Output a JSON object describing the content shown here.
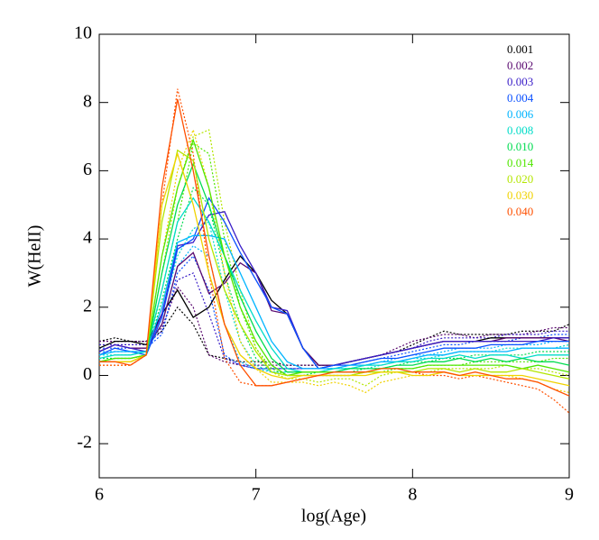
{
  "chart_data": {
    "type": "line",
    "xlabel": "log(Age)",
    "ylabel": "W(HeII)",
    "xlim": [
      6,
      9
    ],
    "ylim": [
      -3,
      10
    ],
    "xticks": [
      6,
      7,
      8,
      9
    ],
    "yticks": [
      -2,
      0,
      2,
      4,
      6,
      8,
      10
    ],
    "legend": "upper right",
    "x": [
      6.0,
      6.1,
      6.2,
      6.3,
      6.4,
      6.5,
      6.6,
      6.7,
      6.8,
      6.9,
      7.0,
      7.1,
      7.2,
      7.3,
      7.4,
      7.5,
      7.6,
      7.7,
      7.8,
      7.9,
      8.0,
      8.1,
      8.2,
      8.3,
      8.4,
      8.5,
      8.6,
      8.7,
      8.8,
      8.9,
      9.0
    ],
    "series": [
      {
        "name": "0.001",
        "color": "#000000",
        "values": [
          0.8,
          1.0,
          1.0,
          0.9,
          1.8,
          2.5,
          1.7,
          2.0,
          2.8,
          3.5,
          3.0,
          2.2,
          1.8,
          0.8,
          0.3,
          0.3,
          0.4,
          0.5,
          0.6,
          0.7,
          0.8,
          0.9,
          1.0,
          1.0,
          1.0,
          1.1,
          1.1,
          1.1,
          1.1,
          1.1,
          1.1
        ]
      },
      {
        "name": "0.002",
        "color": "#5a0a70",
        "values": [
          0.7,
          0.9,
          0.8,
          0.8,
          1.5,
          3.2,
          3.6,
          2.4,
          2.7,
          3.3,
          3.0,
          1.9,
          1.8,
          0.8,
          0.3,
          0.3,
          0.4,
          0.5,
          0.6,
          0.7,
          0.8,
          0.9,
          1.0,
          1.0,
          1.0,
          1.0,
          1.1,
          1.1,
          1.1,
          1.1,
          1.0
        ]
      },
      {
        "name": "0.003",
        "color": "#3a1ec8",
        "values": [
          0.7,
          0.9,
          0.8,
          0.7,
          1.8,
          3.8,
          3.9,
          4.7,
          4.8,
          3.8,
          3.0,
          2.0,
          1.9,
          0.8,
          0.2,
          0.3,
          0.4,
          0.5,
          0.6,
          0.7,
          0.8,
          0.9,
          1.0,
          1.0,
          1.0,
          1.0,
          1.0,
          1.0,
          1.0,
          1.1,
          1.1
        ]
      },
      {
        "name": "0.004",
        "color": "#0a50ff",
        "values": [
          0.6,
          0.8,
          0.7,
          0.6,
          1.7,
          3.7,
          4.0,
          5.2,
          4.5,
          3.6,
          2.8,
          2.0,
          1.8,
          0.8,
          0.2,
          0.3,
          0.3,
          0.4,
          0.5,
          0.5,
          0.6,
          0.7,
          0.8,
          0.8,
          0.8,
          0.9,
          0.9,
          0.9,
          1.0,
          1.0,
          1.0
        ]
      },
      {
        "name": "0.006",
        "color": "#00b4ff",
        "values": [
          0.6,
          0.7,
          0.7,
          0.7,
          2.0,
          3.9,
          4.1,
          4.1,
          4.0,
          3.0,
          2.0,
          1.0,
          0.4,
          0.2,
          0.2,
          0.2,
          0.3,
          0.3,
          0.4,
          0.4,
          0.5,
          0.6,
          0.6,
          0.7,
          0.7,
          0.7,
          0.7,
          0.8,
          0.8,
          0.8,
          0.8
        ]
      },
      {
        "name": "0.008",
        "color": "#00dcc8",
        "values": [
          0.5,
          0.6,
          0.6,
          0.7,
          2.5,
          4.5,
          5.2,
          4.5,
          3.5,
          2.5,
          1.6,
          0.8,
          0.2,
          0.1,
          0.1,
          0.2,
          0.2,
          0.3,
          0.3,
          0.4,
          0.4,
          0.5,
          0.5,
          0.6,
          0.5,
          0.6,
          0.6,
          0.5,
          0.6,
          0.6,
          0.6
        ]
      },
      {
        "name": "0.010",
        "color": "#00dc50",
        "values": [
          0.4,
          0.5,
          0.5,
          0.6,
          3.0,
          5.0,
          6.2,
          5.0,
          3.5,
          2.3,
          1.3,
          0.5,
          0.1,
          0.1,
          0.1,
          0.1,
          0.2,
          0.2,
          0.2,
          0.3,
          0.3,
          0.4,
          0.4,
          0.5,
          0.4,
          0.5,
          0.4,
          0.5,
          0.4,
          0.4,
          0.3
        ]
      },
      {
        "name": "0.014",
        "color": "#50e600",
        "values": [
          0.4,
          0.5,
          0.5,
          0.6,
          3.5,
          5.5,
          6.9,
          5.5,
          3.5,
          2.0,
          1.0,
          0.3,
          0.0,
          0.1,
          0.1,
          0.1,
          0.1,
          0.1,
          0.2,
          0.2,
          0.2,
          0.3,
          0.3,
          0.3,
          0.3,
          0.3,
          0.3,
          0.2,
          0.3,
          0.2,
          0.1
        ]
      },
      {
        "name": "0.020",
        "color": "#b4e600",
        "values": [
          0.4,
          0.4,
          0.4,
          0.6,
          4.5,
          6.6,
          6.3,
          4.0,
          2.5,
          1.5,
          0.7,
          0.1,
          0.0,
          0.0,
          0.0,
          0.0,
          0.0,
          0.1,
          0.1,
          0.1,
          0.1,
          0.2,
          0.2,
          0.1,
          0.2,
          0.1,
          0.1,
          0.2,
          0.1,
          0.0,
          -0.1
        ]
      },
      {
        "name": "0.030",
        "color": "#f0d200",
        "values": [
          0.4,
          0.4,
          0.4,
          0.6,
          5.0,
          6.5,
          5.0,
          3.0,
          1.5,
          0.6,
          0.2,
          0.0,
          -0.1,
          0.0,
          0.0,
          0.0,
          0.0,
          0.0,
          0.1,
          0.1,
          0.0,
          0.0,
          0.1,
          0.0,
          0.0,
          0.0,
          0.0,
          0.0,
          -0.1,
          -0.2,
          -0.3
        ]
      },
      {
        "name": "0.040",
        "color": "#ff5000",
        "values": [
          0.4,
          0.4,
          0.3,
          0.6,
          5.5,
          8.1,
          6.0,
          3.5,
          1.5,
          0.3,
          -0.3,
          -0.3,
          -0.2,
          -0.1,
          0.0,
          0.1,
          0.1,
          0.1,
          0.2,
          0.2,
          0.1,
          0.1,
          0.1,
          0.0,
          0.1,
          0.0,
          -0.1,
          -0.1,
          -0.2,
          -0.4,
          -0.6
        ]
      }
    ],
    "dotted_series": [
      {
        "color": "#000000",
        "values": [
          1.0,
          1.1,
          1.0,
          1.0,
          1.3,
          2.0,
          1.5,
          0.6,
          0.5,
          0.4,
          0.4,
          0.4,
          0.3,
          0.3,
          0.3,
          0.3,
          0.4,
          0.5,
          0.6,
          0.7,
          0.9,
          1.1,
          1.3,
          1.2,
          1.2,
          1.2,
          1.2,
          1.3,
          1.3,
          1.3,
          1.5
        ]
      },
      {
        "color": "#5a0a70",
        "values": [
          1.0,
          1.0,
          1.0,
          1.0,
          1.4,
          2.6,
          2.0,
          0.6,
          0.4,
          0.3,
          0.3,
          0.3,
          0.3,
          0.3,
          0.3,
          0.3,
          0.4,
          0.5,
          0.6,
          0.8,
          1.0,
          1.1,
          1.2,
          1.2,
          1.1,
          1.2,
          1.2,
          1.2,
          1.3,
          1.4,
          1.4
        ]
      },
      {
        "color": "#3a1ec8",
        "values": [
          0.9,
          0.9,
          0.9,
          0.9,
          1.3,
          2.8,
          3.0,
          1.8,
          0.5,
          0.3,
          0.2,
          0.2,
          0.2,
          0.2,
          0.2,
          0.3,
          0.4,
          0.5,
          0.6,
          0.7,
          0.8,
          1.0,
          1.1,
          1.1,
          1.1,
          1.1,
          1.2,
          1.2,
          1.2,
          1.3,
          1.3
        ]
      },
      {
        "color": "#0a50ff",
        "values": [
          0.8,
          0.8,
          0.8,
          0.8,
          1.2,
          3.0,
          3.5,
          2.5,
          0.6,
          0.3,
          0.2,
          0.2,
          0.2,
          0.2,
          0.2,
          0.2,
          0.3,
          0.4,
          0.5,
          0.6,
          0.7,
          0.8,
          0.9,
          0.9,
          1.0,
          1.0,
          1.0,
          1.1,
          1.1,
          1.2,
          1.2
        ]
      },
      {
        "color": "#00b4ff",
        "values": [
          0.7,
          0.7,
          0.7,
          0.7,
          1.5,
          3.2,
          3.8,
          3.5,
          1.5,
          0.4,
          0.2,
          0.1,
          0.1,
          0.1,
          0.1,
          0.2,
          0.2,
          0.3,
          0.4,
          0.5,
          0.6,
          0.6,
          0.7,
          0.8,
          0.8,
          0.8,
          0.9,
          0.9,
          0.9,
          1.0,
          1.0
        ]
      },
      {
        "color": "#00dcc8",
        "values": [
          0.6,
          0.6,
          0.6,
          0.7,
          1.8,
          3.5,
          4.3,
          4.5,
          2.5,
          1.0,
          0.3,
          0.1,
          0.1,
          0.1,
          0.1,
          0.1,
          0.2,
          0.2,
          0.3,
          0.4,
          0.5,
          0.5,
          0.6,
          0.7,
          0.7,
          0.7,
          0.8,
          0.8,
          0.8,
          0.8,
          0.9
        ]
      },
      {
        "color": "#00dc50",
        "values": [
          0.5,
          0.5,
          0.5,
          0.6,
          2.2,
          4.0,
          5.5,
          5.0,
          3.0,
          1.5,
          0.5,
          0.1,
          0.0,
          0.0,
          0.1,
          0.1,
          0.1,
          0.2,
          0.2,
          0.3,
          0.4,
          0.4,
          0.5,
          0.5,
          0.6,
          0.6,
          0.6,
          0.6,
          0.7,
          0.7,
          0.7
        ]
      },
      {
        "color": "#50e600",
        "values": [
          0.4,
          0.4,
          0.4,
          0.6,
          2.5,
          4.5,
          6.8,
          6.5,
          4.0,
          2.0,
          0.8,
          0.2,
          0.0,
          0.0,
          0.0,
          0.0,
          0.0,
          0.1,
          0.1,
          0.2,
          0.2,
          0.3,
          0.3,
          0.3,
          0.4,
          0.4,
          0.4,
          0.4,
          0.4,
          0.5,
          0.5
        ]
      },
      {
        "color": "#b4e600",
        "values": [
          0.4,
          0.4,
          0.4,
          0.6,
          3.0,
          5.5,
          7.0,
          7.2,
          4.5,
          2.5,
          0.8,
          0.1,
          -0.1,
          -0.1,
          -0.2,
          -0.1,
          -0.1,
          -0.3,
          0.0,
          0.1,
          0.1,
          0.1,
          0.2,
          0.2,
          0.2,
          0.2,
          0.3,
          0.2,
          0.2,
          0.1,
          0.0
        ]
      },
      {
        "color": "#f0d200",
        "values": [
          0.3,
          0.3,
          0.3,
          0.6,
          3.5,
          6.0,
          7.2,
          5.5,
          3.0,
          1.0,
          0.2,
          -0.2,
          -0.2,
          -0.2,
          -0.3,
          -0.2,
          -0.3,
          -0.5,
          -0.2,
          -0.1,
          0.0,
          0.0,
          0.1,
          0.0,
          0.0,
          0.0,
          0.0,
          -0.1,
          -0.2,
          -0.4,
          -0.5
        ]
      },
      {
        "color": "#ff5000",
        "values": [
          0.3,
          0.3,
          0.3,
          0.6,
          5.0,
          8.4,
          6.5,
          3.0,
          0.5,
          -0.2,
          -0.3,
          -0.3,
          -0.2,
          -0.1,
          0.0,
          0.0,
          0.0,
          0.1,
          0.1,
          0.1,
          0.1,
          0.0,
          0.0,
          -0.1,
          0.0,
          -0.1,
          -0.2,
          -0.3,
          -0.4,
          -0.7,
          -1.1
        ]
      }
    ]
  }
}
